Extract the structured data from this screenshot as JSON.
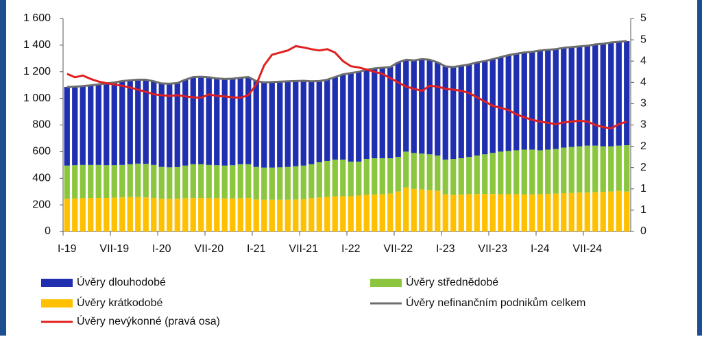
{
  "chart_data": {
    "type": "bar",
    "categories": [
      "I-19",
      null,
      null,
      null,
      null,
      null,
      "VII-19",
      null,
      null,
      null,
      null,
      null,
      "I-20",
      null,
      null,
      null,
      null,
      null,
      "VII-20",
      null,
      null,
      null,
      null,
      null,
      "I-21",
      null,
      null,
      null,
      null,
      null,
      "VII-21",
      null,
      null,
      null,
      null,
      null,
      "I-22",
      null,
      null,
      null,
      null,
      null,
      "VII-22",
      null,
      null,
      null,
      null,
      null,
      "I-23",
      null,
      null,
      null,
      null,
      null,
      "VII-23",
      null,
      null,
      null,
      null,
      null,
      "I-24",
      null,
      null,
      null,
      null,
      null,
      "VII-24",
      null,
      null,
      null,
      null,
      null
    ],
    "series": [
      {
        "name": "Úvěry dlouhodobé",
        "type": "bar",
        "color": "#1f2fb0",
        "values": [
          590,
          590,
          592,
          598,
          605,
          614,
          622,
          630,
          631,
          630,
          632,
          628,
          627,
          628,
          631,
          645,
          655,
          657,
          658,
          652,
          650,
          650,
          650,
          655,
          645,
          640,
          642,
          643,
          643,
          640,
          637,
          623,
          610,
          610,
          620,
          640,
          665,
          675,
          670,
          675,
          680,
          685,
          710,
          690,
          695,
          710,
          710,
          700,
          700,
          690,
          695,
          695,
          700,
          700,
          705,
          710,
          720,
          725,
          730,
          735,
          750,
          750,
          750,
          750,
          750,
          750,
          750,
          760,
          770,
          780,
          780,
          782
        ]
      },
      {
        "name": "Úvěry střednědobé",
        "type": "bar",
        "color": "#8cc63e",
        "values": [
          250,
          250,
          250,
          248,
          248,
          246,
          244,
          244,
          247,
          252,
          252,
          248,
          240,
          237,
          238,
          245,
          253,
          253,
          250,
          248,
          247,
          250,
          255,
          253,
          245,
          242,
          242,
          244,
          247,
          250,
          253,
          255,
          265,
          270,
          275,
          275,
          260,
          255,
          270,
          272,
          270,
          265,
          260,
          270,
          270,
          270,
          268,
          265,
          260,
          270,
          272,
          280,
          288,
          298,
          308,
          320,
          325,
          330,
          337,
          337,
          330,
          333,
          335,
          342,
          345,
          348,
          353,
          350,
          342,
          340,
          340,
          348
        ]
      },
      {
        "name": "Úvěry krátkodobé",
        "type": "bar",
        "color": "#ffc000",
        "values": [
          245,
          248,
          250,
          252,
          252,
          252,
          254,
          256,
          258,
          258,
          256,
          252,
          245,
          245,
          246,
          250,
          252,
          252,
          250,
          250,
          248,
          248,
          250,
          252,
          240,
          238,
          238,
          238,
          238,
          240,
          242,
          250,
          255,
          260,
          265,
          265,
          265,
          270,
          275,
          278,
          280,
          285,
          300,
          330,
          320,
          315,
          312,
          305,
          280,
          275,
          278,
          280,
          282,
          282,
          282,
          280,
          280,
          280,
          278,
          278,
          280,
          282,
          285,
          288,
          290,
          292,
          292,
          295,
          298,
          300,
          305,
          300
        ]
      },
      {
        "name": "Úvěry nefinančním podnikům celkem",
        "type": "line",
        "color": "#6d6d6d",
        "values": [
          1085,
          1088,
          1092,
          1098,
          1105,
          1112,
          1120,
          1130,
          1136,
          1140,
          1140,
          1128,
          1112,
          1110,
          1115,
          1140,
          1160,
          1162,
          1158,
          1150,
          1145,
          1148,
          1155,
          1160,
          1130,
          1120,
          1122,
          1125,
          1128,
          1130,
          1132,
          1128,
          1130,
          1140,
          1160,
          1180,
          1190,
          1200,
          1215,
          1225,
          1230,
          1235,
          1270,
          1290,
          1285,
          1295,
          1290,
          1270,
          1240,
          1235,
          1245,
          1255,
          1270,
          1280,
          1295,
          1310,
          1325,
          1335,
          1345,
          1350,
          1360,
          1365,
          1370,
          1380,
          1385,
          1390,
          1395,
          1405,
          1410,
          1420,
          1425,
          1430
        ]
      },
      {
        "name": "Úvěry nevýkonné (pravá osa)",
        "type": "line",
        "axis": "y2",
        "color": "#e02020",
        "values": [
          3.7,
          3.62,
          3.66,
          3.58,
          3.52,
          3.48,
          3.45,
          3.42,
          3.38,
          3.33,
          3.28,
          3.22,
          3.2,
          3.18,
          3.2,
          3.17,
          3.15,
          3.14,
          3.22,
          3.18,
          3.17,
          3.15,
          3.14,
          3.2,
          3.45,
          3.9,
          4.15,
          4.2,
          4.25,
          4.35,
          4.32,
          4.28,
          4.25,
          4.28,
          4.2,
          4.0,
          3.88,
          3.85,
          3.8,
          3.75,
          3.7,
          3.6,
          3.5,
          3.4,
          3.35,
          3.3,
          3.42,
          3.4,
          3.35,
          3.33,
          3.3,
          3.25,
          3.15,
          3.05,
          2.95,
          2.9,
          2.85,
          2.75,
          2.68,
          2.62,
          2.58,
          2.55,
          2.52,
          2.56,
          2.58,
          2.6,
          2.58,
          2.5,
          2.45,
          2.42,
          2.52,
          2.58
        ]
      }
    ],
    "ylim": [
      0,
      1600
    ],
    "yticks": [
      0,
      200,
      400,
      600,
      800,
      {
        "value": 1000,
        "label": "1 000"
      },
      {
        "value": 1200,
        "label": "1 200"
      },
      {
        "value": 1400,
        "label": "1 400"
      },
      {
        "value": 1600,
        "label": "1 600"
      }
    ],
    "y2lim": [
      0,
      5
    ],
    "y2ticks": [
      0,
      {
        "value": 0.5,
        "label": "1"
      },
      1,
      {
        "value": 1.5,
        "label": "2"
      },
      2,
      {
        "value": 2.5,
        "label": "3"
      },
      3,
      {
        "value": 3.5,
        "label": "4"
      },
      4,
      {
        "value": 4.5,
        "label": "5"
      },
      5
    ],
    "grid": false
  }
}
